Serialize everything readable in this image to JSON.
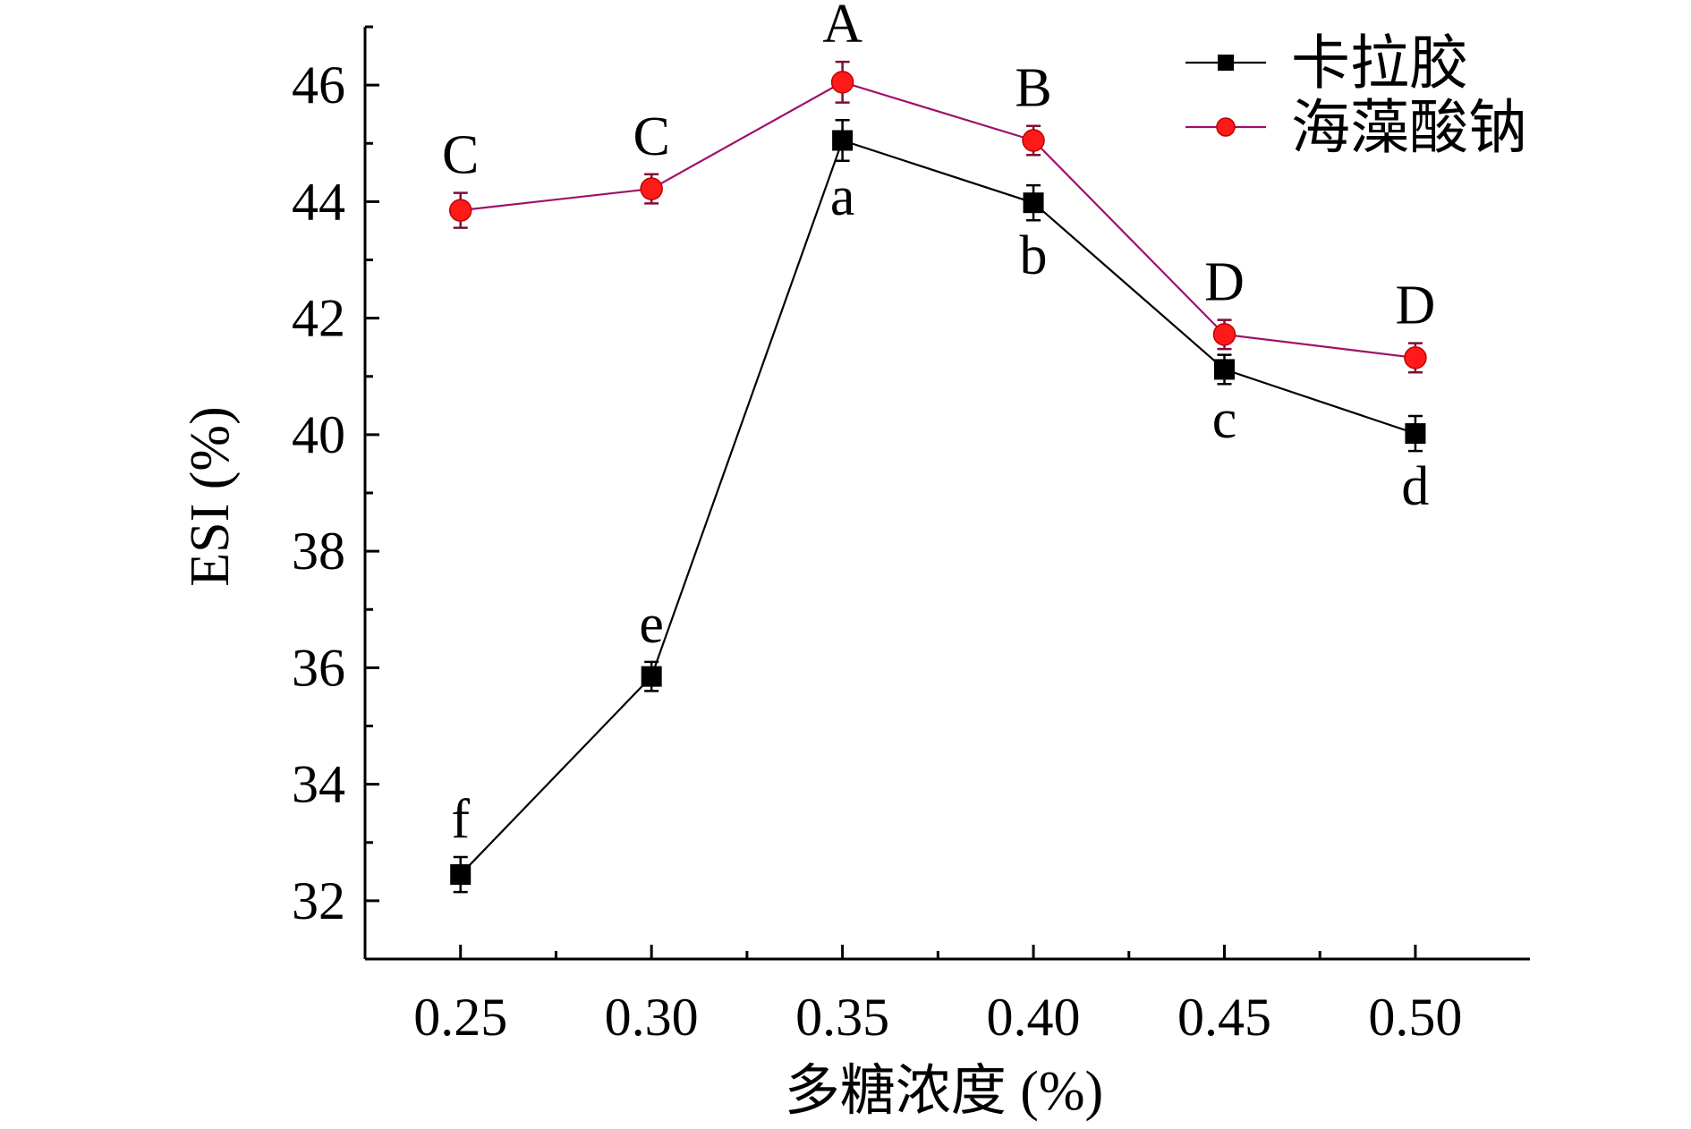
{
  "chart_data": {
    "type": "line",
    "xlabel": "多糖浓度 (%)",
    "ylabel": "ESI (%)",
    "x": [
      "0.25",
      "0.30",
      "0.35",
      "0.40",
      "0.45",
      "0.50"
    ],
    "xlim": [
      0.225,
      0.53
    ],
    "ylim": [
      31,
      47
    ],
    "yticks": [
      32,
      34,
      36,
      38,
      40,
      42,
      44,
      46
    ],
    "grid": false,
    "legend_position": "top-right",
    "series": [
      {
        "name": "卡拉胶",
        "marker": "square",
        "color": "#000000",
        "line_color": "#000000",
        "values": [
          32.45,
          35.85,
          45.05,
          43.98,
          41.12,
          40.02
        ],
        "errors": [
          0.3,
          0.25,
          0.35,
          0.3,
          0.25,
          0.3
        ],
        "significance": [
          "f",
          "e",
          "a",
          "b",
          "c",
          "d"
        ],
        "significance_position": [
          "above",
          "above",
          "below",
          "below",
          "below",
          "below"
        ]
      },
      {
        "name": "海藻酸钠",
        "marker": "circle",
        "color": "#ff1a1a",
        "line_color": "#a0106a",
        "values": [
          43.85,
          44.22,
          46.05,
          45.05,
          41.72,
          41.32
        ],
        "errors": [
          0.3,
          0.25,
          0.35,
          0.25,
          0.25,
          0.25
        ],
        "significance": [
          "C",
          "C",
          "A",
          "B",
          "D",
          "D"
        ],
        "significance_position": [
          "above",
          "above",
          "above",
          "above",
          "above",
          "above"
        ]
      }
    ]
  }
}
